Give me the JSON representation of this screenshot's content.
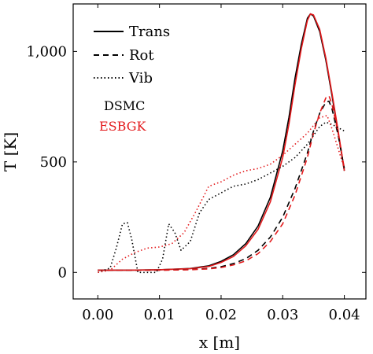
{
  "chart_data": {
    "type": "line",
    "xlabel": "x [m]",
    "ylabel": "T [K]",
    "xlim": [
      -0.004,
      0.0435
    ],
    "ylim": [
      -120,
      1215
    ],
    "x_ticks": [
      0.0,
      0.01,
      0.02,
      0.03,
      0.04
    ],
    "x_tick_labels": [
      "0.00",
      "0.01",
      "0.02",
      "0.03",
      "0.04"
    ],
    "y_ticks": [
      0,
      500,
      1000
    ],
    "y_tick_labels": [
      "0",
      "500",
      "1,000"
    ],
    "grid": false,
    "legend_position": "top-left",
    "legend": [
      {
        "label": "Trans",
        "dash": "solid"
      },
      {
        "label": "Rot",
        "dash": "dashed"
      },
      {
        "label": "Vib",
        "dash": "dotted"
      }
    ],
    "method_labels": [
      {
        "label": "DSMC",
        "color": "#000000"
      },
      {
        "label": "ESBGK",
        "color": "#e31a1c"
      }
    ],
    "series": [
      {
        "method": "DSMC",
        "mode": "Trans",
        "color": "#000000",
        "dash": "solid",
        "points": [
          [
            0.0,
            10
          ],
          [
            0.005,
            10
          ],
          [
            0.01,
            12
          ],
          [
            0.015,
            18
          ],
          [
            0.018,
            30
          ],
          [
            0.02,
            50
          ],
          [
            0.022,
            80
          ],
          [
            0.024,
            130
          ],
          [
            0.026,
            210
          ],
          [
            0.028,
            340
          ],
          [
            0.03,
            550
          ],
          [
            0.031,
            700
          ],
          [
            0.032,
            880
          ],
          [
            0.033,
            1030
          ],
          [
            0.034,
            1150
          ],
          [
            0.0345,
            1170
          ],
          [
            0.035,
            1160
          ],
          [
            0.036,
            1090
          ],
          [
            0.037,
            960
          ],
          [
            0.038,
            800
          ],
          [
            0.039,
            630
          ],
          [
            0.04,
            460
          ]
        ]
      },
      {
        "method": "ESBGK",
        "mode": "Trans",
        "color": "#e31a1c",
        "dash": "solid",
        "points": [
          [
            0.0,
            10
          ],
          [
            0.005,
            10
          ],
          [
            0.01,
            12
          ],
          [
            0.015,
            17
          ],
          [
            0.018,
            27
          ],
          [
            0.02,
            45
          ],
          [
            0.022,
            72
          ],
          [
            0.024,
            120
          ],
          [
            0.026,
            195
          ],
          [
            0.028,
            320
          ],
          [
            0.03,
            520
          ],
          [
            0.031,
            670
          ],
          [
            0.032,
            850
          ],
          [
            0.033,
            1010
          ],
          [
            0.034,
            1140
          ],
          [
            0.0345,
            1170
          ],
          [
            0.035,
            1165
          ],
          [
            0.036,
            1100
          ],
          [
            0.037,
            970
          ],
          [
            0.038,
            810
          ],
          [
            0.039,
            640
          ],
          [
            0.04,
            460
          ]
        ]
      },
      {
        "method": "DSMC",
        "mode": "Rot",
        "color": "#000000",
        "dash": "dashed",
        "points": [
          [
            0.0,
            10
          ],
          [
            0.01,
            10
          ],
          [
            0.015,
            13
          ],
          [
            0.018,
            18
          ],
          [
            0.02,
            26
          ],
          [
            0.022,
            40
          ],
          [
            0.024,
            62
          ],
          [
            0.026,
            100
          ],
          [
            0.028,
            160
          ],
          [
            0.03,
            250
          ],
          [
            0.032,
            380
          ],
          [
            0.034,
            540
          ],
          [
            0.035,
            640
          ],
          [
            0.036,
            720
          ],
          [
            0.037,
            770
          ],
          [
            0.0375,
            775
          ],
          [
            0.038,
            740
          ],
          [
            0.039,
            620
          ],
          [
            0.04,
            470
          ]
        ]
      },
      {
        "method": "ESBGK",
        "mode": "Rot",
        "color": "#e31a1c",
        "dash": "dashed",
        "points": [
          [
            0.0,
            10
          ],
          [
            0.01,
            10
          ],
          [
            0.015,
            12
          ],
          [
            0.018,
            16
          ],
          [
            0.02,
            22
          ],
          [
            0.022,
            34
          ],
          [
            0.024,
            52
          ],
          [
            0.026,
            85
          ],
          [
            0.028,
            140
          ],
          [
            0.03,
            220
          ],
          [
            0.032,
            350
          ],
          [
            0.034,
            520
          ],
          [
            0.035,
            630
          ],
          [
            0.036,
            720
          ],
          [
            0.037,
            790
          ],
          [
            0.0375,
            800
          ],
          [
            0.038,
            760
          ],
          [
            0.039,
            630
          ],
          [
            0.04,
            470
          ]
        ]
      },
      {
        "method": "DSMC",
        "mode": "Vib",
        "color": "#000000",
        "dash": "dotted",
        "points": [
          [
            0.0,
            0
          ],
          [
            0.002,
            20
          ],
          [
            0.003,
            110
          ],
          [
            0.004,
            220
          ],
          [
            0.0048,
            225
          ],
          [
            0.0055,
            150
          ],
          [
            0.0065,
            0
          ],
          [
            0.0085,
            0
          ],
          [
            0.0095,
            0
          ],
          [
            0.0105,
            60
          ],
          [
            0.0115,
            220
          ],
          [
            0.0125,
            180
          ],
          [
            0.0135,
            100
          ],
          [
            0.015,
            140
          ],
          [
            0.0165,
            270
          ],
          [
            0.018,
            330
          ],
          [
            0.02,
            360
          ],
          [
            0.022,
            390
          ],
          [
            0.024,
            400
          ],
          [
            0.026,
            420
          ],
          [
            0.028,
            450
          ],
          [
            0.03,
            480
          ],
          [
            0.032,
            520
          ],
          [
            0.034,
            580
          ],
          [
            0.036,
            660
          ],
          [
            0.037,
            680
          ],
          [
            0.038,
            670
          ],
          [
            0.039,
            655
          ],
          [
            0.04,
            640
          ]
        ]
      },
      {
        "method": "ESBGK",
        "mode": "Vib",
        "color": "#e31a1c",
        "dash": "dotted",
        "points": [
          [
            0.0,
            0
          ],
          [
            0.002,
            10
          ],
          [
            0.004,
            60
          ],
          [
            0.006,
            90
          ],
          [
            0.008,
            110
          ],
          [
            0.01,
            115
          ],
          [
            0.012,
            130
          ],
          [
            0.014,
            180
          ],
          [
            0.016,
            280
          ],
          [
            0.018,
            390
          ],
          [
            0.02,
            410
          ],
          [
            0.022,
            440
          ],
          [
            0.024,
            460
          ],
          [
            0.026,
            470
          ],
          [
            0.028,
            490
          ],
          [
            0.03,
            530
          ],
          [
            0.032,
            580
          ],
          [
            0.034,
            630
          ],
          [
            0.036,
            700
          ],
          [
            0.0372,
            710
          ],
          [
            0.038,
            650
          ],
          [
            0.039,
            560
          ],
          [
            0.04,
            470
          ]
        ]
      }
    ]
  }
}
